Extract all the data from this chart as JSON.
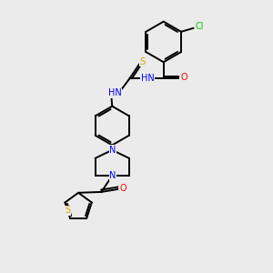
{
  "background_color": "#ebebeb",
  "atom_colors": {
    "C": "#000000",
    "N": "#0000ff",
    "O": "#ff0000",
    "S": "#ccaa00",
    "Cl": "#00cc00",
    "H": "#4a9090"
  },
  "figsize": [
    3.0,
    3.0
  ],
  "dpi": 100
}
